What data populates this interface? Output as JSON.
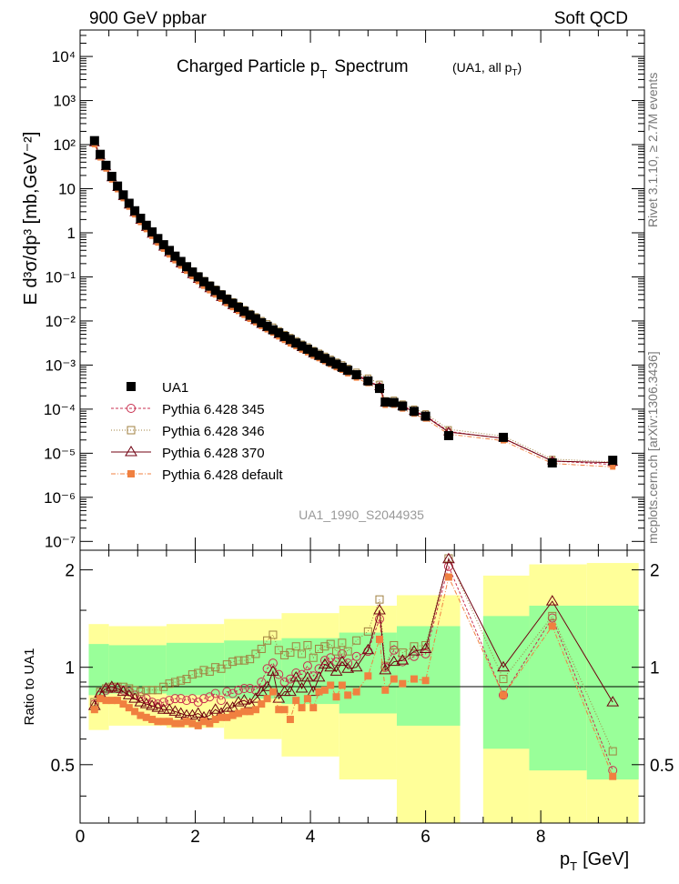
{
  "chart_data": {
    "type": "scatter",
    "header": {
      "left": "900 GeV ppbar",
      "right": "Soft QCD"
    },
    "title": "Charged Particle p",
    "title_sub": "T",
    "title_rest": "Spectrum",
    "title_note": "(UA1, all p",
    "title_note_sub": "T",
    "title_note_end": ")",
    "analysis_id": "UA1_1990_S2044935",
    "side_label_top": "Rivet 3.1.10, ≥ 2.7M events",
    "side_label_bottom": "mcplots.cern.ch [arXiv:1306.3436]",
    "xlabel": "p",
    "xlabel_sub": "T",
    "xlabel_unit": "[GeV]",
    "ylabel": "E d³σ/dp³ [mb,GeV⁻²]",
    "ratio_ylabel": "Ratio to UA1",
    "xlim": [
      0,
      9.8
    ],
    "ylim_log": [
      -7.2,
      4.6
    ],
    "ratio_ylim": [
      0.33,
      2.3
    ],
    "xticks": [
      "0",
      "2",
      "4",
      "6",
      "8"
    ],
    "xtick_values": [
      0,
      2,
      4,
      6,
      8
    ],
    "yticks": [
      {
        "v": -7,
        "t": "10⁻⁷"
      },
      {
        "v": -6,
        "t": "10⁻⁶"
      },
      {
        "v": -5,
        "t": "10⁻⁵"
      },
      {
        "v": -4,
        "t": "10⁻⁴"
      },
      {
        "v": -3,
        "t": "10⁻³"
      },
      {
        "v": -2,
        "t": "10⁻²"
      },
      {
        "v": -1,
        "t": "10⁻¹"
      },
      {
        "v": 0,
        "t": "1"
      },
      {
        "v": 1,
        "t": "10"
      },
      {
        "v": 2,
        "t": "10²"
      },
      {
        "v": 3,
        "t": "10³"
      },
      {
        "v": 4,
        "t": "10⁴"
      }
    ],
    "ratio_yticks": [
      "0.5",
      "1",
      "2"
    ],
    "ratio_ytick_values": [
      0.5,
      1,
      2
    ],
    "legend": [
      {
        "name": "UA1",
        "style": "filled-square",
        "color": "#000000"
      },
      {
        "name": "Pythia 6.428 345",
        "style": "open-circle",
        "color": "#c83050"
      },
      {
        "name": "Pythia 6.428 346",
        "style": "open-square",
        "color": "#a08040"
      },
      {
        "name": "Pythia 6.428 370",
        "style": "open-triangle",
        "color": "#700010"
      },
      {
        "name": "Pythia 6.428 default",
        "style": "filled-small-square",
        "color": "#f08040"
      }
    ],
    "x": [
      0.25,
      0.35,
      0.45,
      0.55,
      0.65,
      0.75,
      0.85,
      0.95,
      1.05,
      1.15,
      1.25,
      1.35,
      1.45,
      1.55,
      1.65,
      1.75,
      1.85,
      1.95,
      2.05,
      2.15,
      2.25,
      2.35,
      2.45,
      2.55,
      2.65,
      2.75,
      2.85,
      2.95,
      3.05,
      3.15,
      3.25,
      3.35,
      3.45,
      3.55,
      3.65,
      3.75,
      3.85,
      3.95,
      4.05,
      4.15,
      4.25,
      4.35,
      4.45,
      4.55,
      4.65,
      4.8,
      5.0,
      5.2,
      5.3,
      5.45,
      5.6,
      5.8,
      6.0,
      6.4,
      6.8,
      7.35,
      8.2,
      9.25
    ],
    "ua1_log10": [
      2.09,
      1.78,
      1.53,
      1.28,
      1.06,
      0.86,
      0.67,
      0.5,
      0.33,
      0.17,
      0.02,
      -0.13,
      -0.27,
      -0.4,
      -0.53,
      -0.65,
      -0.77,
      -0.89,
      -1.0,
      -1.11,
      -1.21,
      -1.31,
      -1.41,
      -1.51,
      -1.6,
      -1.69,
      -1.78,
      -1.87,
      -1.95,
      -2.04,
      -2.12,
      -2.2,
      -2.27,
      -2.35,
      -2.42,
      -2.5,
      -2.57,
      -2.64,
      -2.71,
      -2.78,
      -2.85,
      -2.92,
      -2.98,
      -3.05,
      -3.12,
      -3.22,
      -3.36,
      -3.53,
      -3.84,
      -3.85,
      -3.93,
      -4.05,
      -4.16,
      -4.6,
      null,
      -4.64,
      -5.22,
      -5.16
    ],
    "ratio_345": [
      0.77,
      0.82,
      0.85,
      0.86,
      0.86,
      0.85,
      0.84,
      0.82,
      0.81,
      0.8,
      0.78,
      0.77,
      0.78,
      0.79,
      0.8,
      0.8,
      0.79,
      0.8,
      0.78,
      0.8,
      0.81,
      0.83,
      0.79,
      0.84,
      0.83,
      0.85,
      0.86,
      0.86,
      0.85,
      0.9,
      0.99,
      1.03,
      0.95,
      0.9,
      0.92,
      0.96,
      0.95,
      1.01,
      0.94,
      0.99,
      1.05,
      1.07,
      1.04,
      1.1,
      1.03,
      1.08,
      1.12,
      1.41,
      1.0,
      1.13,
      1.04,
      1.08,
      1.1,
      2.05,
      null,
      0.82,
      1.42,
      0.48
    ],
    "ratio_346": [
      0.78,
      0.84,
      0.86,
      0.87,
      0.87,
      0.87,
      0.86,
      0.85,
      0.84,
      0.85,
      0.85,
      0.85,
      0.87,
      0.89,
      0.9,
      0.91,
      0.92,
      0.95,
      0.96,
      0.98,
      0.97,
      1.0,
      0.99,
      1.02,
      1.04,
      1.05,
      1.05,
      1.06,
      1.1,
      1.14,
      1.21,
      1.26,
      1.13,
      1.09,
      1.11,
      1.16,
      1.1,
      1.17,
      1.07,
      1.14,
      1.16,
      1.18,
      1.12,
      1.19,
      1.12,
      1.21,
      1.29,
      1.62,
      1.01,
      1.17,
      1.11,
      1.16,
      1.17,
      2.17,
      null,
      0.92,
      1.44,
      0.55
    ],
    "ratio_370": [
      0.76,
      0.83,
      0.86,
      0.87,
      0.86,
      0.84,
      0.82,
      0.8,
      0.78,
      0.77,
      0.76,
      0.75,
      0.74,
      0.74,
      0.73,
      0.72,
      0.71,
      0.71,
      0.72,
      0.7,
      0.71,
      0.74,
      0.72,
      0.75,
      0.75,
      0.78,
      0.79,
      0.77,
      0.8,
      0.84,
      0.87,
      0.97,
      0.8,
      0.84,
      0.84,
      0.93,
      0.86,
      0.93,
      0.84,
      0.93,
      1.02,
      1.0,
      0.97,
      1.04,
      0.99,
      1.0,
      1.13,
      1.5,
      0.98,
      1.04,
      1.05,
      1.12,
      1.14,
      2.16,
      null,
      1.0,
      1.6,
      0.78
    ],
    "ratio_default": [
      0.74,
      0.8,
      0.79,
      0.79,
      0.79,
      0.77,
      0.75,
      0.73,
      0.71,
      0.7,
      0.69,
      0.68,
      0.68,
      0.68,
      0.67,
      0.67,
      0.68,
      0.67,
      0.66,
      0.68,
      0.67,
      0.69,
      0.7,
      0.7,
      0.71,
      0.72,
      0.73,
      0.73,
      0.74,
      0.77,
      0.8,
      0.84,
      0.74,
      0.74,
      0.69,
      0.79,
      0.75,
      0.8,
      0.75,
      0.84,
      0.85,
      0.88,
      0.81,
      0.88,
      0.82,
      0.84,
      0.94,
      1.22,
      0.85,
      0.92,
      0.89,
      0.92,
      0.91,
      1.9,
      null,
      0.82,
      1.34,
      0.46
    ],
    "uncertainty_bins": [
      {
        "x0": 0.15,
        "x1": 0.5,
        "green": [
          0.82,
          1.18
        ],
        "yellow": [
          0.64,
          1.36
        ]
      },
      {
        "x0": 0.5,
        "x1": 1.5,
        "green": [
          0.83,
          1.17
        ],
        "yellow": [
          0.66,
          1.34
        ]
      },
      {
        "x0": 1.5,
        "x1": 2.5,
        "green": [
          0.82,
          1.19
        ],
        "yellow": [
          0.65,
          1.36
        ]
      },
      {
        "x0": 2.5,
        "x1": 3.5,
        "green": [
          0.8,
          1.21
        ],
        "yellow": [
          0.6,
          1.41
        ]
      },
      {
        "x0": 3.5,
        "x1": 4.5,
        "green": [
          0.77,
          1.23
        ],
        "yellow": [
          0.53,
          1.47
        ]
      },
      {
        "x0": 4.5,
        "x1": 5.5,
        "green": [
          0.72,
          1.28
        ],
        "yellow": [
          0.45,
          1.55
        ]
      },
      {
        "x0": 5.5,
        "x1": 6.6,
        "green": [
          0.66,
          1.34
        ],
        "yellow": [
          0.33,
          1.67
        ]
      },
      {
        "x0": 7.0,
        "x1": 7.8,
        "green": [
          0.56,
          1.44
        ],
        "yellow": [
          0.33,
          1.92
        ]
      },
      {
        "x0": 7.8,
        "x1": 8.8,
        "green": [
          0.48,
          1.55
        ],
        "yellow": [
          0.33,
          2.08
        ]
      },
      {
        "x0": 8.8,
        "x1": 9.7,
        "green": [
          0.45,
          1.55
        ],
        "yellow": [
          0.33,
          2.1
        ]
      }
    ]
  }
}
